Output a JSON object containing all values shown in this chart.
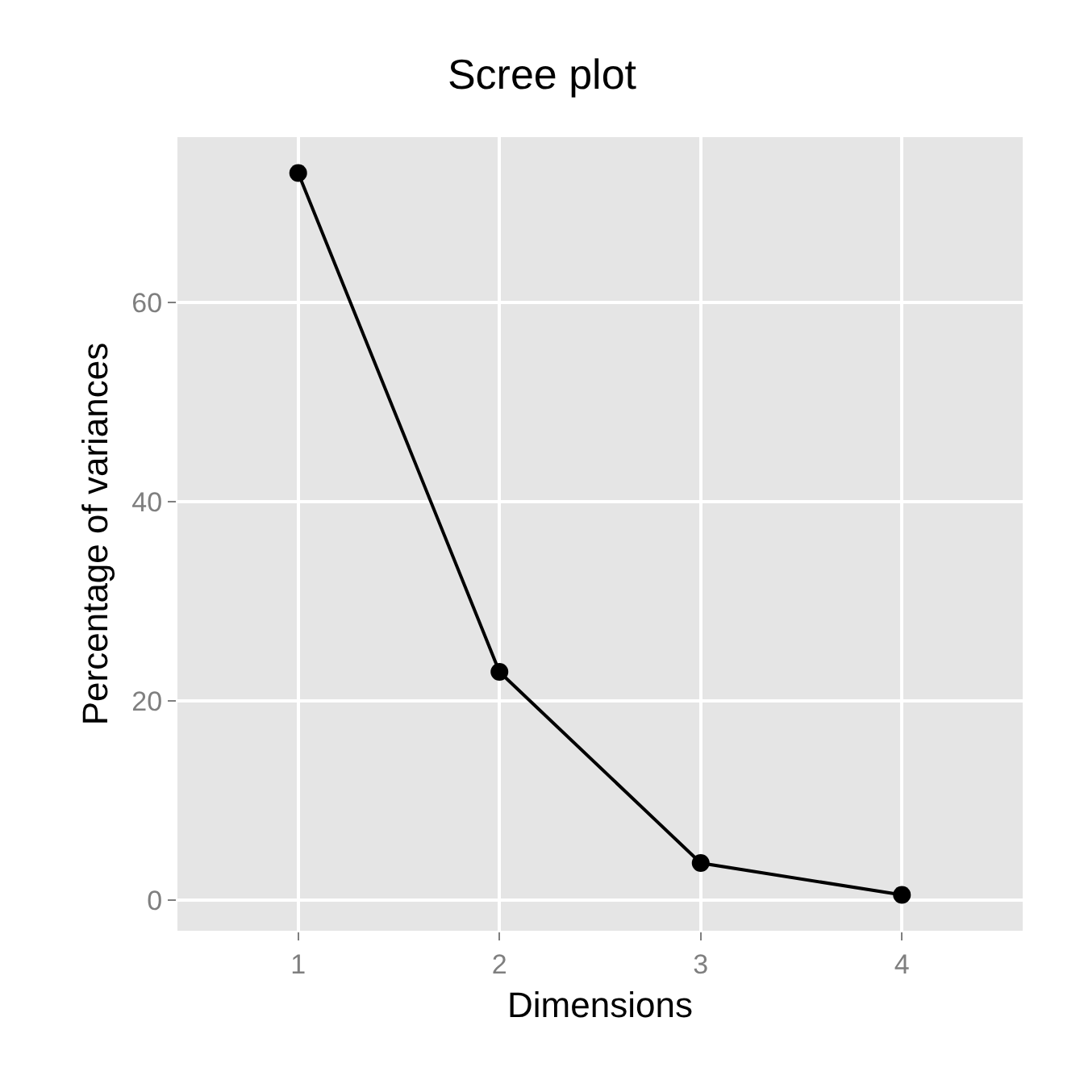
{
  "chart_data": {
    "type": "line",
    "title": "Scree plot",
    "xlabel": "Dimensions",
    "ylabel": "Percentage of variances",
    "categories": [
      "1",
      "2",
      "3",
      "4"
    ],
    "series": [
      {
        "color": "#000000",
        "values": [
          73.0,
          22.9,
          3.7,
          0.5
        ]
      }
    ],
    "ylim": [
      -3.1,
      76.6
    ],
    "yticks": [
      0,
      20,
      40,
      60
    ],
    "grid": true,
    "marker": "circle",
    "line_style": "solid"
  }
}
